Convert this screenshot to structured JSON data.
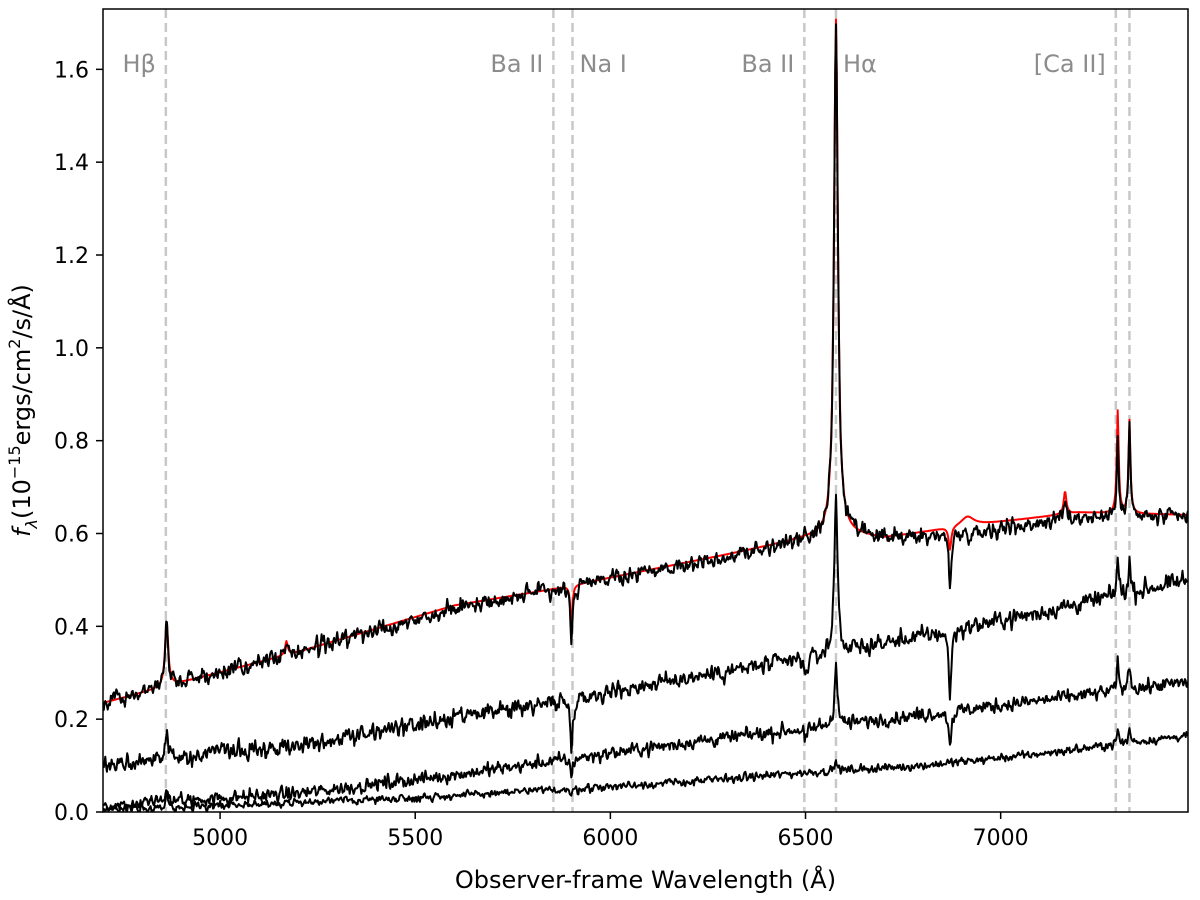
{
  "chart_data": {
    "type": "line",
    "title": "",
    "xlabel": "Observer-frame Wavelength (Å)",
    "ylabel": "f_λ(10^-15 ergs/cm^2/s/Å)",
    "xlim": [
      4700,
      7480
    ],
    "ylim": [
      0.0,
      1.73
    ],
    "x_ticks": [
      5000,
      5500,
      6000,
      6500,
      7000
    ],
    "y_ticks": [
      0.0,
      0.2,
      0.4,
      0.6,
      0.8,
      1.0,
      1.2,
      1.4,
      1.6
    ],
    "grid": false,
    "legend": "none",
    "line_markers": {
      "color": "#c8c8c8",
      "label_color": "#8c8c8c",
      "items": [
        {
          "id": "hbeta",
          "label": "Hβ",
          "wavelengths": [
            4861
          ]
        },
        {
          "id": "ba2-a",
          "label": "Ba II",
          "wavelengths": [
            5854
          ]
        },
        {
          "id": "na1",
          "label": "Na I",
          "wavelengths": [
            5903
          ]
        },
        {
          "id": "ba2-b",
          "label": "Ba II",
          "wavelengths": [
            6497
          ]
        },
        {
          "id": "halpha",
          "label": "Hα",
          "wavelengths": [
            6578
          ]
        },
        {
          "id": "ca2",
          "label": "[Ca II]",
          "wavelengths": [
            7295,
            7330
          ]
        }
      ]
    },
    "series": [
      {
        "color": "#ff0000",
        "continuum": [
          [
            4700,
            0.235
          ],
          [
            5200,
            0.345
          ],
          [
            5600,
            0.445
          ],
          [
            5850,
            0.48
          ],
          [
            6000,
            0.505
          ],
          [
            6300,
            0.555
          ],
          [
            6500,
            0.59
          ],
          [
            6600,
            0.6
          ],
          [
            6700,
            0.59
          ],
          [
            6900,
            0.615
          ],
          [
            7200,
            0.645
          ],
          [
            7480,
            0.64
          ]
        ],
        "features": [
          {
            "center": 4863,
            "amp": 0.14,
            "width": 5
          },
          {
            "center": 5170,
            "amp": 0.03,
            "width": 4
          },
          {
            "center": 5900,
            "amp": -0.09,
            "width": 3
          },
          {
            "center": 6578,
            "amp": 1.11,
            "width": 6
          },
          {
            "center": 6870,
            "amp": -0.05,
            "width": 4
          },
          {
            "center": 6915,
            "amp": 0.02,
            "width": 20
          },
          {
            "center": 7165,
            "amp": 0.05,
            "width": 4
          },
          {
            "center": 7300,
            "amp": 0.22,
            "width": 3
          },
          {
            "center": 7330,
            "amp": 0.2,
            "width": 3
          }
        ],
        "noise": 0.0
      },
      {
        "color": "#000000",
        "continuum": [
          [
            4700,
            0.235
          ],
          [
            5200,
            0.345
          ],
          [
            5600,
            0.44
          ],
          [
            5850,
            0.478
          ],
          [
            6000,
            0.502
          ],
          [
            6300,
            0.55
          ],
          [
            6500,
            0.585
          ],
          [
            6600,
            0.6
          ],
          [
            6700,
            0.588
          ],
          [
            6900,
            0.6
          ],
          [
            7200,
            0.635
          ],
          [
            7480,
            0.635
          ]
        ],
        "features": [
          {
            "center": 4863,
            "amp": 0.14,
            "width": 5
          },
          {
            "center": 5170,
            "amp": 0.03,
            "width": 4
          },
          {
            "center": 5900,
            "amp": -0.14,
            "width": 3
          },
          {
            "center": 6578,
            "amp": 1.1,
            "width": 6
          },
          {
            "center": 6870,
            "amp": -0.1,
            "width": 4
          },
          {
            "center": 7165,
            "amp": 0.04,
            "width": 4
          },
          {
            "center": 7300,
            "amp": 0.19,
            "width": 3
          },
          {
            "center": 7330,
            "amp": 0.2,
            "width": 3
          }
        ],
        "noise": 0.012
      },
      {
        "color": "#000000",
        "continuum": [
          [
            4700,
            0.1
          ],
          [
            5200,
            0.145
          ],
          [
            5600,
            0.2
          ],
          [
            5900,
            0.245
          ],
          [
            6200,
            0.29
          ],
          [
            6500,
            0.33
          ],
          [
            6800,
            0.38
          ],
          [
            7100,
            0.43
          ],
          [
            7480,
            0.5
          ]
        ],
        "features": [
          {
            "center": 4863,
            "amp": 0.06,
            "width": 4
          },
          {
            "center": 5900,
            "amp": -0.13,
            "width": 3
          },
          {
            "center": 6500,
            "amp": -0.04,
            "width": 4
          },
          {
            "center": 6578,
            "amp": 0.34,
            "width": 5
          },
          {
            "center": 6870,
            "amp": -0.14,
            "width": 4
          },
          {
            "center": 7300,
            "amp": 0.08,
            "width": 3
          },
          {
            "center": 7330,
            "amp": 0.07,
            "width": 3
          }
        ],
        "noise": 0.013
      },
      {
        "color": "#000000",
        "continuum": [
          [
            4700,
            0.015
          ],
          [
            5200,
            0.04
          ],
          [
            5600,
            0.08
          ],
          [
            5900,
            0.115
          ],
          [
            6200,
            0.15
          ],
          [
            6500,
            0.18
          ],
          [
            6800,
            0.21
          ],
          [
            7100,
            0.24
          ],
          [
            7480,
            0.28
          ]
        ],
        "features": [
          {
            "center": 4863,
            "amp": 0.02,
            "width": 4
          },
          {
            "center": 5900,
            "amp": -0.04,
            "width": 3
          },
          {
            "center": 6500,
            "amp": -0.03,
            "width": 4
          },
          {
            "center": 6578,
            "amp": 0.14,
            "width": 4
          },
          {
            "center": 6870,
            "amp": -0.07,
            "width": 4
          },
          {
            "center": 7300,
            "amp": 0.06,
            "width": 3
          },
          {
            "center": 7330,
            "amp": 0.06,
            "width": 3
          }
        ],
        "noise": 0.01
      },
      {
        "color": "#000000",
        "continuum": [
          [
            4700,
            0.005
          ],
          [
            5200,
            0.02
          ],
          [
            5600,
            0.035
          ],
          [
            5900,
            0.05
          ],
          [
            6200,
            0.065
          ],
          [
            6500,
            0.085
          ],
          [
            6800,
            0.1
          ],
          [
            7100,
            0.125
          ],
          [
            7480,
            0.165
          ]
        ],
        "features": [
          {
            "center": 4863,
            "amp": 0.045,
            "width": 3
          },
          {
            "center": 5900,
            "amp": -0.02,
            "width": 3
          },
          {
            "center": 6578,
            "amp": 0.02,
            "width": 4
          },
          {
            "center": 7300,
            "amp": 0.03,
            "width": 3
          },
          {
            "center": 7330,
            "amp": 0.03,
            "width": 3
          }
        ],
        "noise": 0.006
      }
    ]
  }
}
